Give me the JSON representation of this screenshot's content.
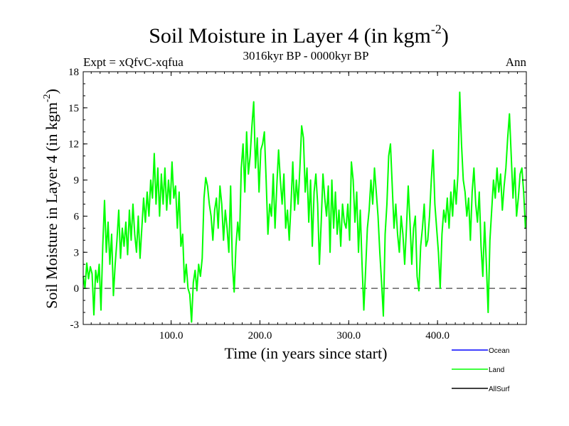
{
  "chart_data": {
    "type": "line",
    "title_main": "Soil Moisture in Layer 4 (in kgm",
    "title_exp": "-2",
    "title_close": ")",
    "subtitle_left": "Expt = xQfvC-xqfua",
    "subtitle_center": "3016kyr BP - 0000kyr BP",
    "subtitle_right": "Ann",
    "xlabel": "Time (in years since start)",
    "ylabel_main": "Soil Moisture in Layer 4 (in kgm",
    "ylabel_exp": "-2",
    "ylabel_close": ")",
    "xlim": [
      1,
      500
    ],
    "ylim": [
      -3,
      18
    ],
    "x_ticks": [
      {
        "value": 100,
        "label": "100.0"
      },
      {
        "value": 200,
        "label": "200.0"
      },
      {
        "value": 300,
        "label": "300.0"
      },
      {
        "value": 400,
        "label": "400.0"
      }
    ],
    "y_ticks": [
      {
        "value": -3,
        "label": "-3"
      },
      {
        "value": 0,
        "label": "0"
      },
      {
        "value": 3,
        "label": "3"
      },
      {
        "value": 6,
        "label": "6"
      },
      {
        "value": 9,
        "label": "9"
      },
      {
        "value": 12,
        "label": "12"
      },
      {
        "value": 15,
        "label": "15"
      },
      {
        "value": 18,
        "label": "18"
      }
    ],
    "zero_line": 0,
    "legend": [
      {
        "name": "Ocean",
        "color": "#0000ff"
      },
      {
        "name": "Land",
        "color": "#00ff00"
      },
      {
        "name": "AllSurf",
        "color": "#000000"
      }
    ],
    "series": [
      {
        "name": "Land",
        "color": "#00ff00",
        "points": [
          [
            1,
            1.0
          ],
          [
            3,
            0.0
          ],
          [
            5,
            2.1
          ],
          [
            7,
            0.8
          ],
          [
            9,
            1.8
          ],
          [
            11,
            1.2
          ],
          [
            13,
            -2.2
          ],
          [
            15,
            1.5
          ],
          [
            17,
            0.5
          ],
          [
            19,
            2.0
          ],
          [
            21,
            -1.8
          ],
          [
            23,
            3.5
          ],
          [
            25,
            7.3
          ],
          [
            27,
            3.0
          ],
          [
            29,
            5.5
          ],
          [
            31,
            2.0
          ],
          [
            33,
            4.5
          ],
          [
            35,
            -0.6
          ],
          [
            37,
            2.0
          ],
          [
            39,
            4.0
          ],
          [
            41,
            6.5
          ],
          [
            43,
            2.5
          ],
          [
            45,
            5.0
          ],
          [
            47,
            3.5
          ],
          [
            49,
            5.5
          ],
          [
            51,
            2.8
          ],
          [
            53,
            6.5
          ],
          [
            55,
            4.0
          ],
          [
            57,
            7.0
          ],
          [
            59,
            4.5
          ],
          [
            61,
            3.0
          ],
          [
            63,
            6.0
          ],
          [
            65,
            2.5
          ],
          [
            67,
            5.0
          ],
          [
            69,
            7.5
          ],
          [
            71,
            5.5
          ],
          [
            73,
            8.0
          ],
          [
            75,
            6.0
          ],
          [
            77,
            9.0
          ],
          [
            79,
            7.5
          ],
          [
            81,
            11.2
          ],
          [
            83,
            7.0
          ],
          [
            85,
            10.0
          ],
          [
            87,
            6.0
          ],
          [
            89,
            9.5
          ],
          [
            91,
            7.0
          ],
          [
            93,
            10.0
          ],
          [
            95,
            6.5
          ],
          [
            97,
            9.0
          ],
          [
            99,
            7.0
          ],
          [
            101,
            10.5
          ],
          [
            103,
            7.5
          ],
          [
            105,
            8.5
          ],
          [
            107,
            5.0
          ],
          [
            109,
            8.0
          ],
          [
            111,
            3.5
          ],
          [
            113,
            4.5
          ],
          [
            115,
            0.5
          ],
          [
            117,
            2.0
          ],
          [
            119,
            0.0
          ],
          [
            121,
            -0.5
          ],
          [
            123,
            -2.8
          ],
          [
            125,
            0.5
          ],
          [
            127,
            1.5
          ],
          [
            129,
            -0.2
          ],
          [
            131,
            2.0
          ],
          [
            133,
            1.0
          ],
          [
            135,
            2.5
          ],
          [
            137,
            7.5
          ],
          [
            139,
            9.2
          ],
          [
            141,
            8.5
          ],
          [
            143,
            7.0
          ],
          [
            145,
            6.0
          ],
          [
            147,
            4.0
          ],
          [
            149,
            6.5
          ],
          [
            151,
            7.5
          ],
          [
            153,
            5.0
          ],
          [
            155,
            8.5
          ],
          [
            157,
            7.0
          ],
          [
            159,
            4.0
          ],
          [
            161,
            6.5
          ],
          [
            163,
            5.0
          ],
          [
            165,
            3.0
          ],
          [
            167,
            8.5
          ],
          [
            169,
            2.0
          ],
          [
            171,
            -0.3
          ],
          [
            173,
            3.5
          ],
          [
            175,
            5.5
          ],
          [
            177,
            4.0
          ],
          [
            179,
            10.0
          ],
          [
            181,
            12.0
          ],
          [
            183,
            8.0
          ],
          [
            185,
            13.0
          ],
          [
            187,
            9.5
          ],
          [
            189,
            11.0
          ],
          [
            191,
            13.5
          ],
          [
            193,
            15.5
          ],
          [
            195,
            10.0
          ],
          [
            197,
            12.5
          ],
          [
            199,
            8.0
          ],
          [
            201,
            11.5
          ],
          [
            203,
            12.0
          ],
          [
            205,
            13.0
          ],
          [
            207,
            9.0
          ],
          [
            209,
            4.5
          ],
          [
            211,
            7.0
          ],
          [
            213,
            6.0
          ],
          [
            215,
            9.5
          ],
          [
            217,
            5.0
          ],
          [
            219,
            8.5
          ],
          [
            221,
            11.5
          ],
          [
            223,
            9.0
          ],
          [
            225,
            7.0
          ],
          [
            227,
            9.5
          ],
          [
            229,
            5.0
          ],
          [
            231,
            6.5
          ],
          [
            233,
            4.0
          ],
          [
            235,
            7.0
          ],
          [
            237,
            10.5
          ],
          [
            239,
            6.5
          ],
          [
            241,
            9.0
          ],
          [
            243,
            7.0
          ],
          [
            245,
            10.0
          ],
          [
            247,
            13.5
          ],
          [
            249,
            12.5
          ],
          [
            251,
            8.0
          ],
          [
            253,
            10.0
          ],
          [
            255,
            5.5
          ],
          [
            257,
            9.0
          ],
          [
            259,
            3.5
          ],
          [
            261,
            8.0
          ],
          [
            263,
            9.5
          ],
          [
            265,
            7.0
          ],
          [
            267,
            2.0
          ],
          [
            269,
            5.5
          ],
          [
            271,
            9.5
          ],
          [
            273,
            7.5
          ],
          [
            275,
            6.0
          ],
          [
            277,
            8.5
          ],
          [
            279,
            3.0
          ],
          [
            281,
            9.0
          ],
          [
            283,
            5.0
          ],
          [
            285,
            8.0
          ],
          [
            287,
            4.5
          ],
          [
            289,
            6.5
          ],
          [
            291,
            3.5
          ],
          [
            293,
            7.0
          ],
          [
            295,
            5.5
          ],
          [
            297,
            5.0
          ],
          [
            299,
            7.0
          ],
          [
            301,
            4.0
          ],
          [
            303,
            10.5
          ],
          [
            305,
            9.0
          ],
          [
            307,
            5.5
          ],
          [
            309,
            8.0
          ],
          [
            311,
            3.0
          ],
          [
            313,
            6.5
          ],
          [
            315,
            2.0
          ],
          [
            317,
            -1.8
          ],
          [
            319,
            1.5
          ],
          [
            321,
            5.0
          ],
          [
            323,
            6.5
          ],
          [
            325,
            9.0
          ],
          [
            327,
            7.0
          ],
          [
            329,
            10.0
          ],
          [
            331,
            8.0
          ],
          [
            333,
            6.0
          ],
          [
            335,
            3.0
          ],
          [
            337,
            0.5
          ],
          [
            339,
            -2.3
          ],
          [
            341,
            4.5
          ],
          [
            343,
            7.0
          ],
          [
            345,
            11.0
          ],
          [
            347,
            12.0
          ],
          [
            349,
            8.5
          ],
          [
            351,
            5.0
          ],
          [
            353,
            7.0
          ],
          [
            355,
            4.5
          ],
          [
            357,
            3.0
          ],
          [
            359,
            6.0
          ],
          [
            361,
            4.5
          ],
          [
            363,
            2.0
          ],
          [
            365,
            5.0
          ],
          [
            367,
            8.5
          ],
          [
            369,
            5.5
          ],
          [
            371,
            2.0
          ],
          [
            373,
            5.0
          ],
          [
            375,
            6.0
          ],
          [
            377,
            1.0
          ],
          [
            379,
            -0.2
          ],
          [
            381,
            3.5
          ],
          [
            383,
            5.0
          ],
          [
            385,
            7.0
          ],
          [
            387,
            3.5
          ],
          [
            389,
            4.0
          ],
          [
            391,
            6.0
          ],
          [
            393,
            9.0
          ],
          [
            395,
            11.5
          ],
          [
            397,
            7.0
          ],
          [
            399,
            5.0
          ],
          [
            401,
            3.0
          ],
          [
            403,
            0.0
          ],
          [
            405,
            4.5
          ],
          [
            407,
            6.5
          ],
          [
            409,
            5.5
          ],
          [
            411,
            7.5
          ],
          [
            413,
            5.0
          ],
          [
            415,
            8.0
          ],
          [
            417,
            6.0
          ],
          [
            419,
            9.0
          ],
          [
            421,
            7.0
          ],
          [
            423,
            9.5
          ],
          [
            425,
            16.3
          ],
          [
            427,
            12.0
          ],
          [
            429,
            9.0
          ],
          [
            431,
            8.0
          ],
          [
            433,
            6.0
          ],
          [
            435,
            7.5
          ],
          [
            437,
            4.0
          ],
          [
            439,
            8.0
          ],
          [
            441,
            10.0
          ],
          [
            443,
            7.0
          ],
          [
            445,
            5.5
          ],
          [
            447,
            8.0
          ],
          [
            449,
            3.5
          ],
          [
            451,
            1.0
          ],
          [
            453,
            5.5
          ],
          [
            455,
            2.0
          ],
          [
            457,
            -2.0
          ],
          [
            459,
            4.0
          ],
          [
            461,
            6.5
          ],
          [
            463,
            9.0
          ],
          [
            465,
            7.5
          ],
          [
            467,
            10.0
          ],
          [
            469,
            8.0
          ],
          [
            471,
            9.5
          ],
          [
            473,
            6.5
          ],
          [
            475,
            8.5
          ],
          [
            477,
            10.0
          ],
          [
            479,
            12.5
          ],
          [
            481,
            14.5
          ],
          [
            483,
            11.0
          ],
          [
            485,
            7.5
          ],
          [
            487,
            10.0
          ],
          [
            489,
            6.0
          ],
          [
            491,
            7.5
          ],
          [
            493,
            9.5
          ],
          [
            495,
            10.0
          ],
          [
            497,
            8.0
          ],
          [
            499,
            5.0
          ],
          [
            500,
            6.0
          ]
        ]
      }
    ]
  }
}
